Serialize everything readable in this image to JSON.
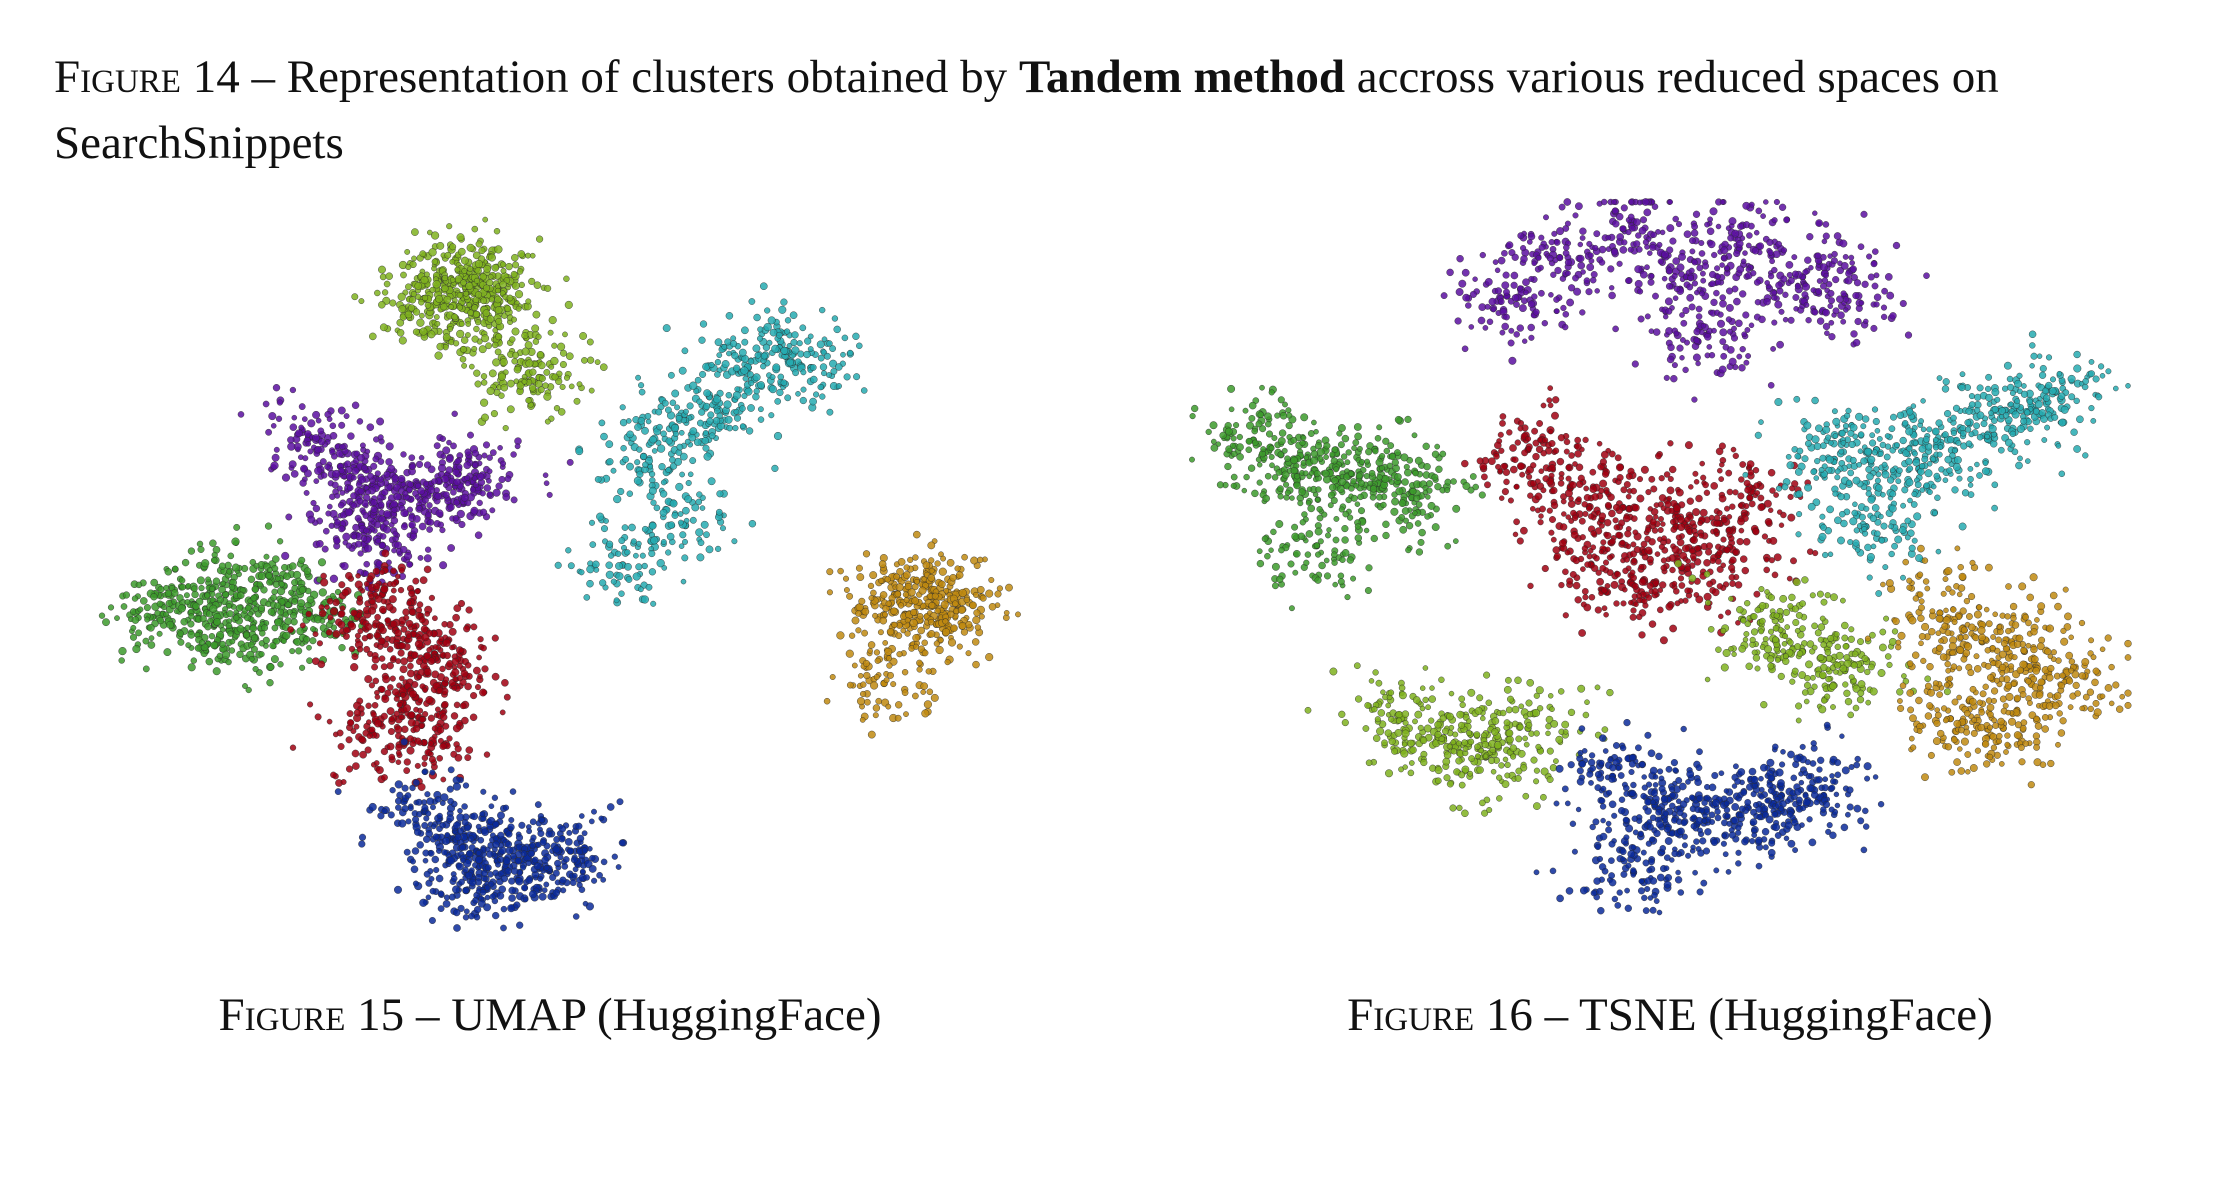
{
  "figure14": {
    "label": "Figure 14",
    "sep": " – ",
    "text_before": "Representation of clusters obtained by ",
    "text_bold": "Tandem method",
    "text_after": " accross various reduced spaces on SearchSnippets"
  },
  "figure15": {
    "label": "Figure 15",
    "sep": " – ",
    "text": "UMAP (HuggingFace)"
  },
  "figure16": {
    "label": "Figure 16",
    "sep": " – ",
    "text": "TSNE (HuggingFace)"
  },
  "cluster_colors": {
    "green": "#7fb21e",
    "leaf": "#3c9a2c",
    "purple": "#5a0fa0",
    "red": "#a00010",
    "blue": "#0a2a9a",
    "cyan": "#26aab0",
    "gold": "#c08a10"
  },
  "chart_data": [
    {
      "type": "scatter",
      "title": "",
      "xlabel": "",
      "ylabel": "",
      "grid": false,
      "axes": false,
      "legend": "none",
      "series": [
        {
          "color_key": "green",
          "x": [
            -1.9,
            -1.7,
            -1.5,
            -1.3,
            -1.2,
            -1.6,
            -1.4,
            -1.0,
            -0.8
          ],
          "y": [
            3.6,
            3.8,
            3.7,
            3.5,
            3.7,
            3.4,
            3.9,
            2.9,
            2.8
          ]
        },
        {
          "color_key": "purple",
          "x": [
            -3.0,
            -2.7,
            -2.4,
            -2.2,
            -2.5,
            -2.3,
            -1.9,
            -1.6,
            -1.4
          ],
          "y": [
            2.2,
            1.9,
            1.7,
            1.5,
            1.3,
            1.1,
            1.6,
            1.7,
            1.8
          ]
        },
        {
          "color_key": "leaf",
          "x": [
            -4.4,
            -4.1,
            -3.8,
            -3.5,
            -3.2,
            -3.6,
            -3.9,
            -3.0
          ],
          "y": [
            0.4,
            0.5,
            0.6,
            0.7,
            0.5,
            0.2,
            0.3,
            0.4
          ]
        },
        {
          "color_key": "red",
          "x": [
            -2.6,
            -2.3,
            -2.0,
            -1.8,
            -2.1,
            -2.4,
            -1.7,
            -1.9
          ],
          "y": [
            0.3,
            0.6,
            0.2,
            0.0,
            -0.5,
            -0.8,
            -0.3,
            -0.9
          ]
        },
        {
          "color_key": "blue",
          "x": [
            -1.9,
            -1.6,
            -1.4,
            -1.2,
            -1.0,
            -0.7,
            -0.5,
            -1.5
          ],
          "y": [
            -1.6,
            -1.8,
            -2.0,
            -2.1,
            -2.1,
            -2.2,
            -2.0,
            -2.4
          ]
        },
        {
          "color_key": "cyan",
          "x": [
            0.2,
            0.5,
            0.9,
            1.2,
            1.5,
            1.8,
            0.6,
            0.0
          ],
          "y": [
            2.0,
            2.3,
            2.5,
            2.9,
            3.1,
            2.9,
            1.3,
            0.9
          ]
        },
        {
          "color_key": "gold",
          "x": [
            2.6,
            2.9,
            3.2,
            3.0,
            2.7,
            2.5
          ],
          "y": [
            0.6,
            0.7,
            0.5,
            0.3,
            0.4,
            -0.3
          ]
        }
      ]
    },
    {
      "type": "scatter",
      "title": "",
      "xlabel": "",
      "ylabel": "",
      "grid": false,
      "axes": false,
      "legend": "none",
      "series": [
        {
          "color_key": "purple",
          "x": [
            -1.6,
            -1.1,
            -0.5,
            0.1,
            0.6,
            1.2,
            1.6,
            0.3
          ],
          "y": [
            4.2,
            4.6,
            4.9,
            4.4,
            4.7,
            4.4,
            4.2,
            3.8
          ]
        },
        {
          "color_key": "red",
          "x": [
            -1.4,
            -1.0,
            -0.5,
            0.0,
            0.4,
            -0.2,
            -0.8,
            0.7
          ],
          "y": [
            2.6,
            2.2,
            2.0,
            1.8,
            1.5,
            1.2,
            1.4,
            2.1
          ]
        },
        {
          "color_key": "leaf",
          "x": [
            -4.0,
            -3.6,
            -3.2,
            -2.8,
            -2.5,
            -3.4
          ],
          "y": [
            2.7,
            2.5,
            2.3,
            2.4,
            2.1,
            1.6
          ]
        },
        {
          "color_key": "green",
          "x": [
            -2.6,
            -2.2,
            -1.8,
            -1.4,
            0.8,
            1.2,
            1.6
          ],
          "y": [
            -0.2,
            -0.4,
            -0.6,
            -0.3,
            0.8,
            0.5,
            0.3
          ]
        },
        {
          "color_key": "blue",
          "x": [
            -0.6,
            -0.2,
            0.2,
            0.6,
            1.0,
            1.4,
            -0.4
          ],
          "y": [
            -0.8,
            -1.1,
            -1.3,
            -1.2,
            -1.0,
            -1.0,
            -1.8
          ]
        },
        {
          "color_key": "cyan",
          "x": [
            1.5,
            1.9,
            2.3,
            2.7,
            3.2,
            3.6,
            1.8
          ],
          "y": [
            2.5,
            2.6,
            2.4,
            2.8,
            3.0,
            3.2,
            1.8
          ]
        },
        {
          "color_key": "gold",
          "x": [
            2.5,
            2.9,
            3.3,
            3.7,
            2.6,
            3.1
          ],
          "y": [
            0.9,
            0.6,
            0.5,
            0.2,
            -0.2,
            -0.3
          ]
        }
      ]
    }
  ]
}
